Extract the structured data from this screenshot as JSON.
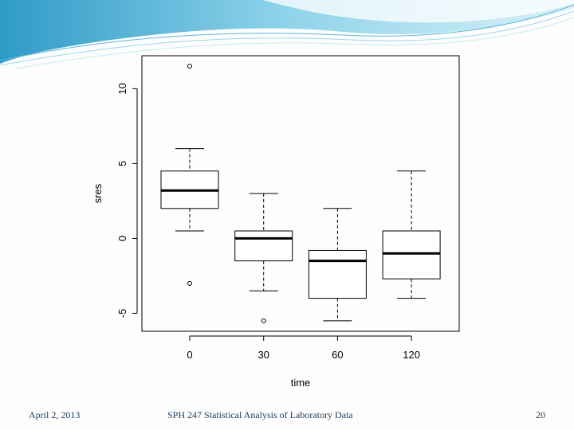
{
  "footer": {
    "date": "April 2, 2013",
    "course": "SPH 247 Statistical Analysis of Laboratory Data",
    "page_number": "20"
  },
  "theme": {
    "banner_dark": "#3aa7cf",
    "banner_light": "#bfe6f2",
    "plot_frame": "#000000"
  },
  "chart_data": {
    "type": "boxplot",
    "title": "",
    "xlabel": "time",
    "ylabel": "sres",
    "categories": [
      "0",
      "30",
      "60",
      "120"
    ],
    "yticks": [
      "-5",
      "0",
      "5",
      "10"
    ],
    "ylim": [
      -6.2,
      12.2
    ],
    "grid": false,
    "boxes": [
      {
        "category": "0",
        "whisker_low": 0.5,
        "q1": 2.0,
        "median": 3.2,
        "q3": 4.5,
        "whisker_high": 6.0,
        "outliers": [
          11.5,
          -3.0
        ]
      },
      {
        "category": "30",
        "whisker_low": -3.5,
        "q1": -1.5,
        "median": 0.0,
        "q3": 0.5,
        "whisker_high": 3.0,
        "outliers": [
          -5.5
        ]
      },
      {
        "category": "60",
        "whisker_low": -5.5,
        "q1": -4.0,
        "median": -1.5,
        "q3": -0.8,
        "whisker_high": 2.0,
        "outliers": []
      },
      {
        "category": "120",
        "whisker_low": -4.0,
        "q1": -2.7,
        "median": -1.0,
        "q3": 0.5,
        "whisker_high": 4.5,
        "outliers": []
      }
    ]
  }
}
